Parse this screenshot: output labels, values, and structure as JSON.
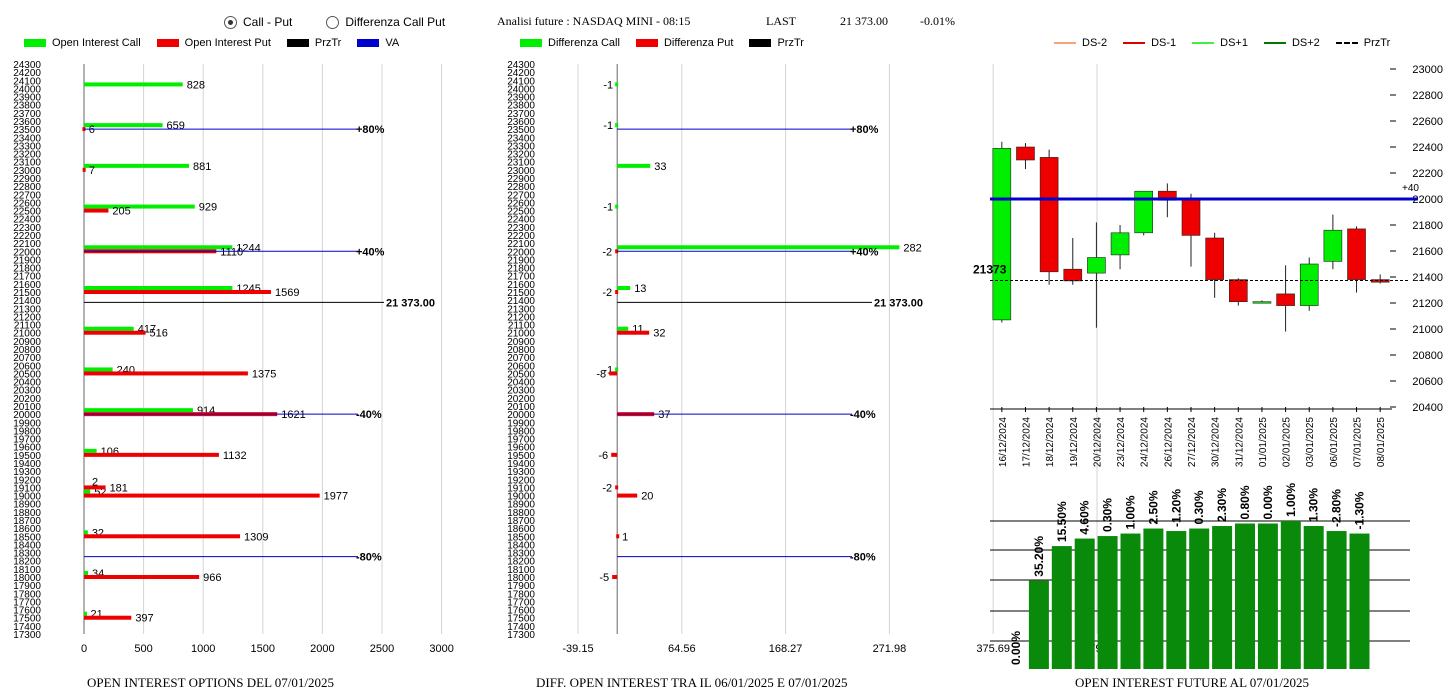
{
  "header": {
    "mode_options": [
      {
        "label": "Call - Put",
        "selected": true
      },
      {
        "label": "Differenza Call Put",
        "selected": false
      }
    ],
    "analysis_title": "Analisi future : NASDAQ MINI - 08:15",
    "last_label": "LAST",
    "last_value": "21 373.00",
    "last_change": "-0.01%"
  },
  "colors": {
    "call": "#00ee00",
    "put": "#ee0000",
    "price": "#000000",
    "va": "#0000cc",
    "ds_minus2": "#f4a57a",
    "ds_minus1": "#dd0000",
    "ds_plus1": "#44ee44",
    "ds_plus2": "#007700",
    "bar_green": "#0a8a0a"
  },
  "chart_data": [
    {
      "type": "bar",
      "orientation": "horizontal",
      "caption": "OPEN INTEREST OPTIONS DEL 07/01/2025",
      "legend": [
        "Open Interest Call",
        "Open Interest Put",
        "PrzTr",
        "VA"
      ],
      "y_ticks": [
        24300,
        24200,
        24100,
        24000,
        23900,
        23800,
        23700,
        23600,
        23500,
        23400,
        23300,
        23200,
        23100,
        23000,
        22900,
        22800,
        22700,
        22600,
        22500,
        22400,
        22300,
        22200,
        22100,
        22000,
        21900,
        21800,
        21700,
        21600,
        21500,
        21400,
        21300,
        21200,
        21100,
        21000,
        20900,
        20800,
        20700,
        20600,
        20500,
        20400,
        20300,
        20200,
        20100,
        20000,
        19900,
        19800,
        19700,
        19600,
        19500,
        19400,
        19300,
        19200,
        19100,
        19000,
        18900,
        18800,
        18700,
        18600,
        18500,
        18400,
        18300,
        18200,
        18100,
        18000,
        17900,
        17800,
        17700,
        17600,
        17500,
        17400,
        17300
      ],
      "x_ticks": [
        0,
        500,
        1000,
        1500,
        2000,
        2500,
        3000
      ],
      "xlim": [
        0,
        3000
      ],
      "ylim": [
        17300,
        24300
      ],
      "series": [
        {
          "name": "Open Interest Call",
          "points": [
            {
              "strike": 24000,
              "value": 828,
              "label": "828"
            },
            {
              "strike": 23500,
              "value": 659,
              "label": "659"
            },
            {
              "strike": 23000,
              "value": 881,
              "label": "881"
            },
            {
              "strike": 22500,
              "value": 929,
              "label": "929"
            },
            {
              "strike": 22000,
              "value": 1244,
              "label": "1244"
            },
            {
              "strike": 21500,
              "value": 1245,
              "label": "1245"
            },
            {
              "strike": 21000,
              "value": 417,
              "label": "417"
            },
            {
              "strike": 20500,
              "value": 240,
              "label": "240"
            },
            {
              "strike": 20000,
              "value": 914,
              "label": "914"
            },
            {
              "strike": 19500,
              "value": 106,
              "label": "106"
            },
            {
              "strike": 19000,
              "value": 52,
              "label": "52"
            },
            {
              "strike": 18500,
              "value": 32,
              "label": "32"
            },
            {
              "strike": 18000,
              "value": 34,
              "label": "34"
            },
            {
              "strike": 17500,
              "value": 21,
              "label": "21"
            }
          ]
        },
        {
          "name": "Open Interest Put",
          "points": [
            {
              "strike": 23500,
              "value": 6,
              "label": "6"
            },
            {
              "strike": 23000,
              "value": 7,
              "label": "7"
            },
            {
              "strike": 22500,
              "value": 205,
              "label": "205"
            },
            {
              "strike": 22000,
              "value": 1110,
              "label": "1110"
            },
            {
              "strike": 21500,
              "value": 1569,
              "label": "1569"
            },
            {
              "strike": 21000,
              "value": 516,
              "label": "516"
            },
            {
              "strike": 20500,
              "value": 1375,
              "label": "1375"
            },
            {
              "strike": 20000,
              "value": 1621,
              "label": "1621"
            },
            {
              "strike": 19500,
              "value": 1132,
              "label": "1132"
            },
            {
              "strike": 19100,
              "value": 181,
              "label": "181"
            },
            {
              "strike": 19000,
              "value": 1977,
              "label": "1977"
            },
            {
              "strike": 18500,
              "value": 1309,
              "label": "1309"
            },
            {
              "strike": 18000,
              "value": 966,
              "label": "966"
            },
            {
              "strike": 17500,
              "value": 397,
              "label": "397"
            }
          ]
        }
      ],
      "extra_labels": [
        {
          "strike": 19100,
          "text": "2"
        }
      ],
      "va_lines": [
        {
          "strike": 23500,
          "label": "+80%"
        },
        {
          "strike": 22000,
          "label": "+40%"
        },
        {
          "strike": 20000,
          "label": "-40%"
        },
        {
          "strike": 18250,
          "label": "-80%"
        }
      ],
      "price_line": {
        "strike": 21373,
        "label": "21 373.00"
      }
    },
    {
      "type": "bar",
      "orientation": "horizontal",
      "caption": "DIFF. OPEN INTEREST TRA IL 06/01/2025 E 07/01/2025",
      "legend": [
        "Differenza Call",
        "Differenza Put",
        "PrzTr"
      ],
      "x_ticks": [
        "-39.15",
        "64.56",
        "168.27",
        "271.98",
        "375.69",
        "479.4"
      ],
      "xlim": [
        -39.15,
        479.4
      ],
      "ylim": [
        17300,
        24300
      ],
      "series": [
        {
          "name": "Differenza Call",
          "points": [
            {
              "strike": 24000,
              "value": -1,
              "label": "-1"
            },
            {
              "strike": 23500,
              "value": -1,
              "label": "-1"
            },
            {
              "strike": 23000,
              "value": 33,
              "label": "33"
            },
            {
              "strike": 22500,
              "value": -1,
              "label": "-1"
            },
            {
              "strike": 22000,
              "value": 282,
              "label": "282"
            },
            {
              "strike": 21500,
              "value": 13,
              "label": "13"
            },
            {
              "strike": 21000,
              "value": 11,
              "label": "11"
            },
            {
              "strike": 20500,
              "value": -1,
              "label": "-1"
            }
          ]
        },
        {
          "name": "Differenza Put",
          "points": [
            {
              "strike": 22000,
              "value": -2,
              "label": "-2"
            },
            {
              "strike": 21500,
              "value": -2,
              "label": "-2"
            },
            {
              "strike": 21000,
              "value": 32,
              "label": "32"
            },
            {
              "strike": 20500,
              "value": -8,
              "label": "-8"
            },
            {
              "strike": 20000,
              "value": 37,
              "label": "37"
            },
            {
              "strike": 19500,
              "value": -6,
              "label": "-6"
            },
            {
              "strike": 19100,
              "value": -2,
              "label": "-2"
            },
            {
              "strike": 19000,
              "value": 20,
              "label": "20"
            },
            {
              "strike": 18500,
              "value": 1,
              "label": "1"
            },
            {
              "strike": 18000,
              "value": -5,
              "label": "-5"
            }
          ]
        }
      ],
      "va_lines": [
        {
          "strike": 23500,
          "label": "+80%"
        },
        {
          "strike": 22000,
          "label": "+40%"
        },
        {
          "strike": 20000,
          "label": "-40%"
        },
        {
          "strike": 18250,
          "label": "-80%"
        }
      ],
      "price_line": {
        "strike": 21373,
        "label": "21 373.00"
      }
    },
    {
      "type": "candlestick",
      "legend": [
        "DS-2",
        "DS-1",
        "DS+1",
        "DS+2",
        "PrzTr"
      ],
      "y_ticks": [
        23000,
        22800,
        22600,
        22400,
        22200,
        22000,
        21800,
        21600,
        21400,
        21200,
        21000,
        20800,
        20600,
        20400
      ],
      "ylim": [
        20400,
        23000
      ],
      "dates": [
        "16/12/2024",
        "17/12/2024",
        "18/12/2024",
        "19/12/2024",
        "20/12/2024",
        "23/12/2024",
        "24/12/2024",
        "26/12/2024",
        "27/12/2024",
        "30/12/2024",
        "31/12/2024",
        "01/01/2025",
        "02/01/2025",
        "03/01/2025",
        "06/01/2025",
        "07/01/2025",
        "08/01/2025"
      ],
      "candles": [
        {
          "o": 21070,
          "h": 22440,
          "l": 21050,
          "c": 22390
        },
        {
          "o": 22400,
          "h": 22430,
          "l": 22230,
          "c": 22300
        },
        {
          "o": 22320,
          "h": 22380,
          "l": 21340,
          "c": 21440
        },
        {
          "o": 21460,
          "h": 21700,
          "l": 21340,
          "c": 21370
        },
        {
          "o": 21430,
          "h": 21820,
          "l": 21010,
          "c": 21550
        },
        {
          "o": 21570,
          "h": 21800,
          "l": 21460,
          "c": 21740
        },
        {
          "o": 21740,
          "h": 22060,
          "l": 21720,
          "c": 22060
        },
        {
          "o": 22060,
          "h": 22120,
          "l": 21860,
          "c": 21990
        },
        {
          "o": 22000,
          "h": 22040,
          "l": 21480,
          "c": 21720
        },
        {
          "o": 21700,
          "h": 21740,
          "l": 21240,
          "c": 21380
        },
        {
          "o": 21380,
          "h": 21390,
          "l": 21180,
          "c": 21210
        },
        {
          "o": 21210,
          "h": 21220,
          "l": 21200,
          "c": 21210
        },
        {
          "o": 21270,
          "h": 21490,
          "l": 20980,
          "c": 21180
        },
        {
          "o": 21180,
          "h": 21550,
          "l": 21140,
          "c": 21500
        },
        {
          "o": 21520,
          "h": 21880,
          "l": 21460,
          "c": 21760
        },
        {
          "o": 21770,
          "h": 21790,
          "l": 21280,
          "c": 21380
        },
        {
          "o": 21380,
          "h": 21420,
          "l": 21350,
          "c": 21360
        }
      ],
      "bull_color": "#00ee00",
      "bear_color": "#ee0000",
      "lines": [
        {
          "name": "DS+1",
          "value": 22000,
          "label": "+40"
        }
      ],
      "price_line": {
        "value": 21373,
        "label": "21373"
      }
    },
    {
      "type": "bar",
      "caption": "OPEN INTEREST FUTURE AL 07/01/2025",
      "values": [
        0,
        35.2,
        49,
        52,
        53,
        54,
        56,
        55,
        56,
        57,
        58,
        58,
        59,
        57,
        55,
        54
      ],
      "labels": [
        "0.00%",
        "35.20%",
        "15.50%",
        "4.60%",
        "0.30%",
        "1.00%",
        "2.50%",
        "-1.20%",
        "0.30%",
        "2.30%",
        "0.80%",
        "0.00%",
        "1.00%",
        "1.30%",
        "-2.80%",
        "-1.30%"
      ]
    }
  ],
  "captions": {
    "left": "OPEN INTEREST OPTIONS DEL 07/01/2025",
    "middle": "DIFF. OPEN INTEREST TRA IL 06/01/2025 E 07/01/2025",
    "right": "OPEN INTEREST FUTURE AL 07/01/2025"
  },
  "legends": {
    "left": [
      "Open Interest Call",
      "Open Interest Put",
      "PrzTr",
      "VA"
    ],
    "middle": [
      "Differenza Call",
      "Differenza Put",
      "PrzTr"
    ],
    "right": [
      "DS-2",
      "DS-1",
      "DS+1",
      "DS+2",
      "PrzTr"
    ]
  }
}
